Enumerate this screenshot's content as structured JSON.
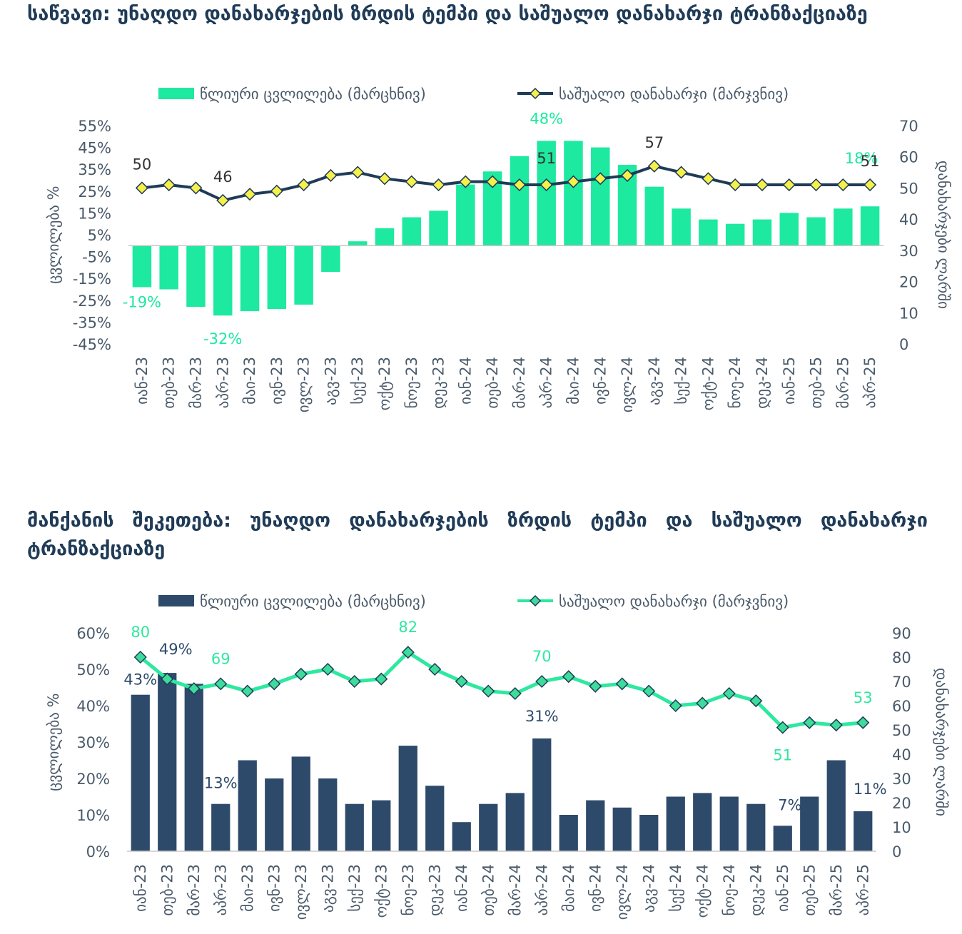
{
  "chart_data": [
    {
      "type": "bar",
      "title": "საწვავი: უნაღდო დანახარჯების ზრდის ტემპი და საშუალო დანახარჯი ტრანზაქციაზე",
      "ylabel": "ცვლილება %",
      "y2label": "დანახარჯები ლარში",
      "ylim": [
        -45,
        55
      ],
      "y2lim": [
        0,
        70
      ],
      "yticks": [
        "55%",
        "45%",
        "35%",
        "25%",
        "15%",
        "5%",
        "-5%",
        "-15%",
        "-25%",
        "-35%",
        "-45%"
      ],
      "y2ticks": [
        "70",
        "60",
        "50",
        "40",
        "30",
        "20",
        "10",
        "0"
      ],
      "legend_position": "top",
      "categories": [
        "იან-23",
        "თებ-23",
        "მარ-23",
        "აპრ-23",
        "მაი-23",
        "ივნ-23",
        "ივლ-23",
        "აგვ-23",
        "სექ-23",
        "ოქტ-23",
        "ნოე-23",
        "დეკ-23",
        "იან-24",
        "თებ-24",
        "მარ-24",
        "აპრ-24",
        "მაი-24",
        "ივნ-24",
        "ივლ-24",
        "აგვ-24",
        "სექ-24",
        "ოქტ-24",
        "ნოე-24",
        "დეკ-24",
        "იან-25",
        "თებ-25",
        "მარ-25",
        "აპრ-25"
      ],
      "series": [
        {
          "name": "წლიური ცვლილება (მარცხნივ)",
          "kind": "bar",
          "axis": "left",
          "color": "#1de9a0",
          "values": [
            -19,
            -20,
            -28,
            -32,
            -30,
            -29,
            -27,
            -12,
            2,
            8,
            13,
            16,
            28,
            34,
            41,
            48,
            48,
            45,
            37,
            27,
            17,
            12,
            10,
            12,
            15,
            13,
            17,
            18
          ],
          "labels": [
            {
              "index": 0,
              "text": "-19%"
            },
            {
              "index": 3,
              "text": "-32%"
            },
            {
              "index": 15,
              "text": "48%"
            },
            {
              "index": 27,
              "text": "18%"
            }
          ]
        },
        {
          "name": "საშუალო დანახარჯი (მარჯვნივ)",
          "kind": "line",
          "axis": "right",
          "color": "#1f3b57",
          "marker_color": "#f5f04a",
          "values": [
            50,
            51,
            50,
            46,
            48,
            49,
            51,
            54,
            55,
            53,
            52,
            51,
            52,
            52,
            51,
            51,
            52,
            53,
            54,
            57,
            55,
            53,
            51,
            51,
            51,
            51,
            51,
            51
          ],
          "labels": [
            {
              "index": 0,
              "text": "50"
            },
            {
              "index": 3,
              "text": "46"
            },
            {
              "index": 15,
              "text": "51"
            },
            {
              "index": 19,
              "text": "57"
            },
            {
              "index": 27,
              "text": "51"
            }
          ]
        }
      ]
    },
    {
      "type": "bar",
      "title": "მანქანის შეკეთება: უნაღდო დანახარჯების ზრდის ტემპი და საშუალო დანახარჯი ტრანზაქციაზე",
      "ylabel": "ცვლილება %",
      "y2label": "დანახარჯები ლარში",
      "ylim": [
        0,
        60
      ],
      "y2lim": [
        0,
        90
      ],
      "yticks": [
        "60%",
        "50%",
        "40%",
        "30%",
        "20%",
        "10%",
        "0%"
      ],
      "y2ticks": [
        "90",
        "80",
        "70",
        "60",
        "50",
        "40",
        "30",
        "20",
        "10",
        "0"
      ],
      "legend_position": "top",
      "categories": [
        "იან-23",
        "თებ-23",
        "მარ-23",
        "აპრ-23",
        "მაი-23",
        "ივნ-23",
        "ივლ-23",
        "აგვ-23",
        "სექ-23",
        "ოქტ-23",
        "ნოე-23",
        "დეკ-23",
        "იან-24",
        "თებ-24",
        "მარ-24",
        "აპრ-24",
        "მაი-24",
        "ივნ-24",
        "ივლ-24",
        "აგვ-24",
        "სექ-24",
        "ოქტ-24",
        "ნოე-24",
        "დეკ-24",
        "იან-25",
        "თებ-25",
        "მარ-25",
        "აპრ-25"
      ],
      "series": [
        {
          "name": "წლიური ცვლილება (მარცხნივ)",
          "kind": "bar",
          "axis": "left",
          "color": "#2e4a6b",
          "values": [
            43,
            49,
            46,
            13,
            25,
            20,
            26,
            20,
            13,
            14,
            29,
            18,
            8,
            13,
            16,
            31,
            10,
            14,
            12,
            10,
            15,
            16,
            15,
            13,
            7,
            15,
            25,
            11
          ],
          "labels": [
            {
              "index": 0,
              "text": "43%"
            },
            {
              "index": 1,
              "text": "49%"
            },
            {
              "index": 3,
              "text": "13%"
            },
            {
              "index": 15,
              "text": "31%"
            },
            {
              "index": 24,
              "text": "7%"
            },
            {
              "index": 27,
              "text": "11%"
            }
          ]
        },
        {
          "name": "საშუალო დანახარჯი (მარჯვნივ)",
          "kind": "line",
          "axis": "right",
          "color": "#2ee89f",
          "marker_color": "#3ddc9a",
          "values": [
            80,
            71,
            67,
            69,
            66,
            69,
            73,
            75,
            70,
            71,
            82,
            75,
            70,
            66,
            65,
            70,
            72,
            68,
            69,
            66,
            60,
            61,
            65,
            62,
            51,
            53,
            52,
            53
          ],
          "labels": [
            {
              "index": 0,
              "text": "80"
            },
            {
              "index": 3,
              "text": "69"
            },
            {
              "index": 10,
              "text": "82"
            },
            {
              "index": 15,
              "text": "70"
            },
            {
              "index": 24,
              "text": "51"
            },
            {
              "index": 27,
              "text": "53"
            }
          ]
        }
      ]
    }
  ]
}
